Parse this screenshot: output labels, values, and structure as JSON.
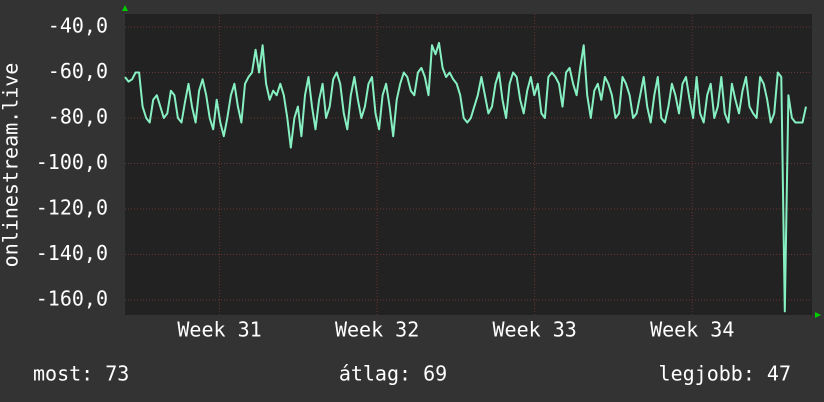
{
  "chart_data": {
    "type": "line",
    "ylabel": "onlinestream.live",
    "ylim": [
      -166.6,
      -34.3
    ],
    "yticks": [
      {
        "value": -40,
        "label": "-40,0"
      },
      {
        "value": -60,
        "label": "-60,0"
      },
      {
        "value": -80,
        "label": "-80,0"
      },
      {
        "value": -100,
        "label": "-100,0"
      },
      {
        "value": -120,
        "label": "-120,0"
      },
      {
        "value": -140,
        "label": "-140,0"
      },
      {
        "value": -160,
        "label": "-160,0"
      }
    ],
    "xlim": [
      30.4,
      34.76
    ],
    "xticks": [
      {
        "value": 31,
        "label": "Week 31"
      },
      {
        "value": 32,
        "label": "Week 32"
      },
      {
        "value": 33,
        "label": "Week 33"
      },
      {
        "value": 34,
        "label": "Week 34"
      }
    ],
    "grid": true,
    "color": "#86f0c2",
    "values": [
      -62,
      -64,
      -63,
      -60,
      -60,
      -75,
      -80,
      -82,
      -72,
      -70,
      -75,
      -80,
      -78,
      -68,
      -70,
      -80,
      -82,
      -73,
      -65,
      -75,
      -82,
      -68,
      -63,
      -70,
      -80,
      -85,
      -72,
      -82,
      -88,
      -80,
      -70,
      -65,
      -75,
      -82,
      -65,
      -62,
      -60,
      -50,
      -60,
      -48,
      -65,
      -72,
      -68,
      -70,
      -65,
      -70,
      -80,
      -93,
      -80,
      -75,
      -88,
      -70,
      -62,
      -75,
      -85,
      -72,
      -65,
      -80,
      -75,
      -63,
      -60,
      -65,
      -78,
      -85,
      -70,
      -62,
      -72,
      -80,
      -75,
      -65,
      -62,
      -78,
      -85,
      -70,
      -65,
      -75,
      -88,
      -72,
      -65,
      -60,
      -62,
      -68,
      -70,
      -60,
      -58,
      -62,
      -70,
      -48,
      -52,
      -47,
      -58,
      -62,
      -60,
      -63,
      -65,
      -70,
      -80,
      -82,
      -80,
      -75,
      -70,
      -62,
      -70,
      -78,
      -75,
      -65,
      -60,
      -72,
      -80,
      -65,
      -60,
      -62,
      -72,
      -78,
      -68,
      -62,
      -70,
      -65,
      -78,
      -80,
      -62,
      -60,
      -62,
      -65,
      -75,
      -60,
      -58,
      -65,
      -70,
      -58,
      -48,
      -70,
      -80,
      -68,
      -65,
      -72,
      -62,
      -65,
      -70,
      -80,
      -78,
      -62,
      -65,
      -70,
      -80,
      -78,
      -70,
      -62,
      -75,
      -82,
      -70,
      -62,
      -80,
      -82,
      -75,
      -65,
      -70,
      -78,
      -65,
      -62,
      -72,
      -80,
      -62,
      -78,
      -82,
      -70,
      -65,
      -80,
      -75,
      -62,
      -78,
      -82,
      -65,
      -72,
      -78,
      -68,
      -62,
      -75,
      -78,
      -80,
      -62,
      -65,
      -72,
      -82,
      -78,
      -60,
      -62,
      -165,
      -70,
      -80,
      -82,
      -82,
      -82,
      -75
    ],
    "stats": [
      "most: 73",
      "átlag: 69",
      "legjobb: 47"
    ]
  }
}
